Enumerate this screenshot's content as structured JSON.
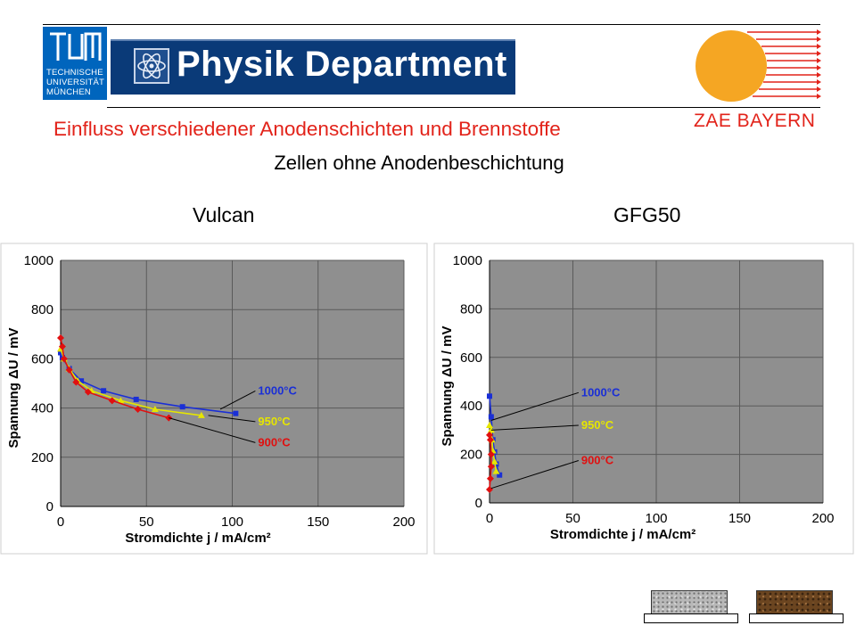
{
  "header": {
    "tum_logo_lines": [
      "TECHNISCHE",
      "UNIVERSITÄT",
      "MÜNCHEN"
    ],
    "department": "Physik Department",
    "partner": "ZAE BAYERN"
  },
  "slide": {
    "title": "Einfluss verschiedener Anodenschichten und Brennstoffe",
    "subtitle": "Zellen ohne Anodenbeschichtung"
  },
  "panels": [
    {
      "title": "Vulcan"
    },
    {
      "title": "GFG50"
    }
  ],
  "colors": {
    "plot_bg": "#8f8f8f",
    "series_1000": "#1a2fd6",
    "series_950": "#e6e600",
    "series_900": "#e01010",
    "accent_red": "#e2231a",
    "banner_blue": "#0a3a78",
    "tum_blue": "#0065bd",
    "sun_orange": "#f5a623"
  },
  "chart_data": [
    {
      "type": "line",
      "panel": "Vulcan",
      "xlabel": "Stromdichte j / mA/cm²",
      "ylabel": "Spannung ΔU / mV",
      "xlim": [
        0,
        200
      ],
      "ylim": [
        0,
        1000
      ],
      "xticks": [
        0,
        50,
        100,
        150,
        200
      ],
      "yticks": [
        0,
        200,
        400,
        600,
        800,
        1000
      ],
      "grid": true,
      "series": [
        {
          "name": "1000°C",
          "color": "#1a2fd6",
          "marker": "square",
          "points": [
            [
              0,
              625
            ],
            [
              1,
              605
            ],
            [
              5,
              560
            ],
            [
              12,
              510
            ],
            [
              25,
              470
            ],
            [
              44,
              435
            ],
            [
              71,
              405
            ],
            [
              102,
              378
            ]
          ],
          "label_anchor": [
            93,
            395
          ],
          "label_pos": [
            115,
            455
          ]
        },
        {
          "name": "950°C",
          "color": "#e6e600",
          "marker": "triangle",
          "points": [
            [
              0,
              640
            ],
            [
              2,
              600
            ],
            [
              5,
              560
            ],
            [
              10,
              510
            ],
            [
              18,
              470
            ],
            [
              35,
              430
            ],
            [
              55,
              395
            ],
            [
              82,
              370
            ]
          ],
          "label_anchor": [
            86,
            370
          ],
          "label_pos": [
            115,
            330
          ]
        },
        {
          "name": "900°C",
          "color": "#e01010",
          "marker": "diamond",
          "points": [
            [
              0,
              685
            ],
            [
              1,
              650
            ],
            [
              2,
              600
            ],
            [
              5,
              555
            ],
            [
              9,
              505
            ],
            [
              16,
              465
            ],
            [
              30,
              430
            ],
            [
              45,
              395
            ],
            [
              63,
              360
            ]
          ],
          "label_anchor": [
            63,
            360
          ],
          "label_pos": [
            115,
            245
          ]
        }
      ]
    },
    {
      "type": "line",
      "panel": "GFG50",
      "xlabel": "Stromdichte j / mA/cm²",
      "ylabel": "Spannung ΔU / mV",
      "xlim": [
        0,
        200
      ],
      "ylim": [
        0,
        1000
      ],
      "xticks": [
        0,
        50,
        100,
        150,
        200
      ],
      "yticks": [
        0,
        200,
        400,
        600,
        800,
        1000
      ],
      "grid": true,
      "series": [
        {
          "name": "1000°C",
          "color": "#1a2fd6",
          "marker": "square",
          "points": [
            [
              0,
              440
            ],
            [
              1,
              355
            ],
            [
              2,
              260
            ],
            [
              3,
              210
            ],
            [
              4,
              160
            ],
            [
              6,
              115
            ]
          ],
          "label_anchor": [
            1,
            340
          ],
          "label_pos": [
            55,
            440
          ]
        },
        {
          "name": "950°C",
          "color": "#e6e600",
          "marker": "triangle",
          "points": [
            [
              0,
              320
            ],
            [
              1,
              300
            ],
            [
              1.5,
              260
            ],
            [
              2,
              215
            ],
            [
              3,
              170
            ],
            [
              4,
              130
            ]
          ],
          "label_anchor": [
            1,
            300
          ],
          "label_pos": [
            55,
            305
          ]
        },
        {
          "name": "900°C",
          "color": "#e01010",
          "marker": "diamond",
          "points": [
            [
              0,
              280
            ],
            [
              0.5,
              260
            ],
            [
              1,
              200
            ],
            [
              1,
              150
            ],
            [
              0.5,
              100
            ],
            [
              0,
              55
            ]
          ],
          "label_anchor": [
            1,
            60
          ],
          "label_pos": [
            55,
            160
          ]
        }
      ]
    }
  ]
}
